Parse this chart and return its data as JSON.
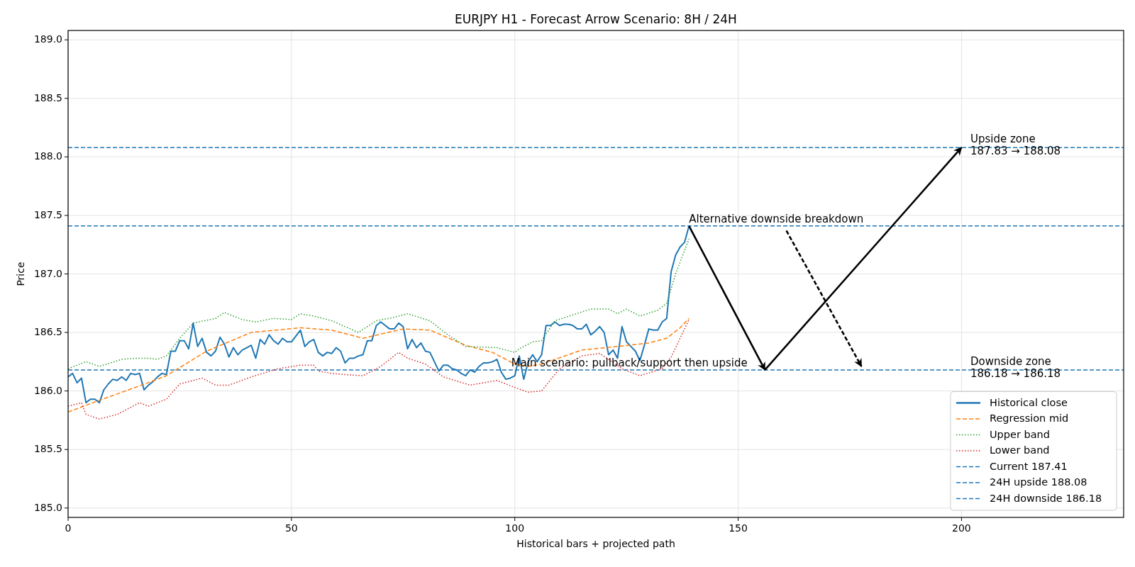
{
  "chart_data": {
    "type": "line",
    "title": "EURJPY H1 - Forecast Arrow Scenario: 8H / 24H",
    "xlabel": "Historical bars + projected path",
    "ylabel": "Price",
    "xlim": [
      0,
      236.3
    ],
    "xticks": [
      0,
      50,
      100,
      150,
      200
    ],
    "ylim": [
      184.92,
      189.08
    ],
    "yticks": [
      {
        "value": 185,
        "label": "185.0"
      },
      {
        "value": 185.5,
        "label": "185.5"
      },
      {
        "value": 186,
        "label": "186.0"
      },
      {
        "value": 186.5,
        "label": "186.5"
      },
      {
        "value": 187,
        "label": "187.0"
      },
      {
        "value": 187.5,
        "label": "187.5"
      },
      {
        "value": 188,
        "label": "188.0"
      },
      {
        "value": 188.5,
        "label": "188.5"
      },
      {
        "value": 189,
        "label": "189.0"
      }
    ],
    "grid": true,
    "legend": "bottom right",
    "series": [
      {
        "name": "Historical close",
        "color": "#1f77b4",
        "line_style": "solid",
        "x": [
          0,
          1,
          2,
          3,
          4,
          5,
          6,
          7,
          8,
          9,
          10,
          11,
          12,
          13,
          14,
          15,
          16,
          17,
          18,
          19,
          20,
          21,
          22,
          23,
          24,
          25,
          26,
          27,
          28,
          29,
          30,
          31,
          32,
          33,
          34,
          35,
          36,
          37,
          38,
          39,
          40,
          41,
          42,
          43,
          44,
          45,
          46,
          47,
          48,
          49,
          50,
          51,
          52,
          53,
          54,
          55,
          56,
          57,
          58,
          59,
          60,
          61,
          62,
          63,
          64,
          65,
          66,
          67,
          68,
          69,
          70,
          71,
          72,
          73,
          74,
          75,
          76,
          77,
          78,
          79,
          80,
          81,
          82,
          83,
          84,
          85,
          86,
          87,
          88,
          89,
          90,
          91,
          92,
          93,
          94,
          95,
          96,
          97,
          98,
          99,
          100,
          101,
          102,
          103,
          104,
          105,
          106,
          107,
          108,
          109,
          110,
          111,
          112,
          113,
          114,
          115,
          116,
          117,
          118,
          119,
          120,
          121,
          122,
          123,
          124,
          125,
          126,
          127,
          128,
          129,
          130,
          131,
          132,
          133,
          134,
          135,
          136,
          137,
          138,
          139
        ],
        "values": [
          186.12,
          186.15,
          186.07,
          186.11,
          185.9,
          185.93,
          185.93,
          185.9,
          186.01,
          186.06,
          186.1,
          186.09,
          186.12,
          186.09,
          186.15,
          186.14,
          186.15,
          186.01,
          186.05,
          186.08,
          186.12,
          186.15,
          186.14,
          186.34,
          186.34,
          186.43,
          186.43,
          186.36,
          186.58,
          186.38,
          186.45,
          186.33,
          186.3,
          186.34,
          186.46,
          186.4,
          186.29,
          186.37,
          186.31,
          186.35,
          186.37,
          186.39,
          186.28,
          186.44,
          186.4,
          186.48,
          186.43,
          186.4,
          186.45,
          186.42,
          186.42,
          186.47,
          186.52,
          186.38,
          186.42,
          186.44,
          186.33,
          186.3,
          186.33,
          186.32,
          186.37,
          186.34,
          186.24,
          186.28,
          186.28,
          186.3,
          186.31,
          186.43,
          186.43,
          186.56,
          186.59,
          186.56,
          186.53,
          186.53,
          186.58,
          186.55,
          186.36,
          186.44,
          186.37,
          186.41,
          186.34,
          186.33,
          186.25,
          186.17,
          186.22,
          186.22,
          186.19,
          186.18,
          186.15,
          186.13,
          186.18,
          186.16,
          186.21,
          186.24,
          186.24,
          186.25,
          186.27,
          186.16,
          186.1,
          186.11,
          186.13,
          186.3,
          186.1,
          186.25,
          186.31,
          186.25,
          186.31,
          186.56,
          186.56,
          186.59,
          186.56,
          186.57,
          186.57,
          186.56,
          186.53,
          186.53,
          186.57,
          186.48,
          186.51,
          186.55,
          186.5,
          186.31,
          186.35,
          186.28,
          186.55,
          186.42,
          186.38,
          186.34,
          186.26,
          186.39,
          186.53,
          186.52,
          186.52,
          186.59,
          186.62,
          187.02,
          187.16,
          187.23,
          187.27,
          187.41
        ]
      },
      {
        "name": "Regression mid",
        "color": "#ff7f0e",
        "line_style": "dashed",
        "x": [
          0,
          7,
          15,
          22,
          31,
          41,
          52,
          59,
          66,
          75,
          81,
          89,
          95,
          100,
          103,
          106,
          115,
          123,
          130,
          134,
          137,
          139
        ],
        "values": [
          185.82,
          185.92,
          186.03,
          186.13,
          186.34,
          186.5,
          186.54,
          186.52,
          186.45,
          186.53,
          186.52,
          186.39,
          186.33,
          186.23,
          186.21,
          186.23,
          186.35,
          186.38,
          186.41,
          186.45,
          186.54,
          186.62
        ]
      },
      {
        "name": "Upper band",
        "color": "#2ca02c",
        "line_style": "dotted",
        "x": [
          0,
          4,
          7,
          12,
          15,
          18,
          20,
          22,
          25,
          28,
          33,
          35,
          39,
          42,
          46,
          50,
          52,
          55,
          59,
          65,
          69,
          73,
          76,
          81,
          85,
          89,
          96,
          100,
          101,
          104,
          106,
          109,
          117,
          121,
          123,
          125,
          128,
          132,
          134,
          136,
          139
        ],
        "values": [
          186.19,
          186.25,
          186.21,
          186.27,
          186.28,
          186.28,
          186.27,
          186.3,
          186.45,
          186.58,
          186.62,
          186.67,
          186.61,
          186.59,
          186.62,
          186.61,
          186.66,
          186.64,
          186.6,
          186.5,
          186.6,
          186.63,
          186.66,
          186.6,
          186.48,
          186.38,
          186.37,
          186.33,
          186.36,
          186.42,
          186.43,
          186.6,
          186.7,
          186.7,
          186.66,
          186.7,
          186.64,
          186.69,
          186.75,
          187.0,
          187.3
        ]
      },
      {
        "name": "Lower band",
        "color": "#d62728",
        "line_style": "dotted",
        "x": [
          0,
          3,
          4,
          7,
          11,
          16,
          18,
          22,
          25,
          30,
          33,
          36,
          41,
          47,
          52,
          55,
          56,
          59,
          62,
          66,
          70,
          74,
          76,
          80,
          84,
          90,
          96,
          100,
          103,
          106,
          110,
          115,
          119,
          121,
          124,
          128,
          133,
          135,
          139
        ],
        "values": [
          185.87,
          185.9,
          185.8,
          185.76,
          185.8,
          185.9,
          185.87,
          185.93,
          186.06,
          186.11,
          186.05,
          186.05,
          186.12,
          186.19,
          186.22,
          186.22,
          186.17,
          186.15,
          186.14,
          186.13,
          186.21,
          186.33,
          186.28,
          186.23,
          186.12,
          186.05,
          186.09,
          186.03,
          185.99,
          186.0,
          186.19,
          186.3,
          186.32,
          186.27,
          186.19,
          186.13,
          186.19,
          186.29,
          186.61
        ]
      },
      {
        "type": "line",
        "color": "#000000",
        "line_style": "solid",
        "x": [
          139,
          156
        ],
        "values": [
          187.41,
          186.18
        ]
      },
      {
        "type": "line",
        "color": "#000000",
        "line_style": "solid",
        "x": [
          156,
          200
        ],
        "values": [
          186.18,
          188.08
        ]
      },
      {
        "type": "line",
        "color": "#000000",
        "line_style": "dashed",
        "x": [
          160.8,
          177.6
        ],
        "values": [
          187.37,
          186.21
        ]
      }
    ],
    "ref_lines": [
      {
        "axis": "y",
        "value": 187.41,
        "label": "Current 187.41",
        "color": "#1f77b4",
        "line_style": "dashed"
      },
      {
        "axis": "y",
        "value": 188.08,
        "label": "24H upside 188.08",
        "color": "#1f77b4",
        "line_style": "dashed"
      },
      {
        "axis": "y",
        "value": 186.18,
        "label": "24H downside 186.18",
        "color": "#1f77b4",
        "line_style": "dashed"
      }
    ],
    "annotations": [
      {
        "text": "Alternative downside breakdown",
        "x": 139,
        "y": 187.41
      },
      {
        "text": "Main scenario: pullback/support then upside",
        "x": 99.2,
        "y": 186.18
      },
      {
        "text": "Upside zone\n187.83 → 188.08",
        "x": 202,
        "y": 188.08
      },
      {
        "text": "Downside zone\n186.18 → 186.18",
        "x": 202,
        "y": 186.18
      }
    ]
  }
}
